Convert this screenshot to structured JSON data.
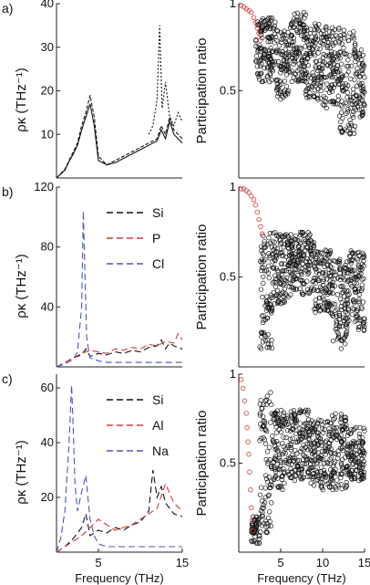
{
  "chart_data": [
    {
      "panel": "a)",
      "type": "line",
      "ylabel": "ρκ (THz⁻¹)",
      "ylim": [
        0,
        40
      ],
      "yticks": [
        "40",
        "30",
        "20",
        "10"
      ],
      "ytick_values": [
        40,
        30,
        20,
        10
      ],
      "xlim": [
        0,
        15
      ],
      "legend": null,
      "series": [
        {
          "color": "#111111",
          "dash": "4 2",
          "x": [
            0,
            1,
            1.5,
            2,
            2.5,
            3,
            3.5,
            4,
            4.5,
            5,
            6,
            7,
            8,
            9,
            10,
            11,
            12,
            12.5,
            13,
            13.5,
            14,
            15
          ],
          "y": [
            0,
            2,
            4,
            6,
            8,
            12,
            15,
            19,
            14,
            5,
            3,
            4,
            5,
            6,
            7,
            8,
            9,
            12,
            10,
            14,
            11,
            9
          ]
        },
        {
          "color": "#111111",
          "dash": "none",
          "x": [
            0,
            1,
            1.5,
            2,
            2.5,
            3,
            3.5,
            4,
            4.5,
            5,
            6,
            7,
            8,
            9,
            10,
            11,
            12,
            12.5,
            13,
            13.5,
            14,
            15
          ],
          "y": [
            0,
            1.8,
            3.8,
            5.5,
            7.5,
            11,
            14,
            17,
            12,
            4,
            3,
            3.5,
            4.5,
            5.5,
            6.5,
            7.5,
            8.5,
            11,
            9,
            13,
            10,
            8
          ]
        },
        {
          "color": "#111111",
          "dash": "2 2",
          "x": [
            11,
            11.5,
            12,
            12.3,
            12.6,
            13,
            13.5,
            14,
            14.5,
            15
          ],
          "y": [
            10,
            12,
            18,
            35,
            16,
            22,
            14,
            12,
            15,
            13
          ]
        }
      ]
    },
    {
      "panel": "b)",
      "type": "line",
      "ylabel": "ρκ (THz⁻¹)",
      "ylim": [
        0,
        120
      ],
      "yticks": [
        "120",
        "80",
        "40"
      ],
      "ytick_values": [
        120,
        80,
        40
      ],
      "xlim": [
        0,
        15
      ],
      "legend": "top-right",
      "series": [
        {
          "name": "Si",
          "color": "#111111",
          "dash": "7 4",
          "x": [
            0,
            1,
            2,
            3,
            3.5,
            4,
            5,
            6,
            7,
            8,
            9,
            10,
            11,
            12,
            12.5,
            13,
            13.5,
            14,
            15
          ],
          "y": [
            0,
            3,
            6,
            8,
            12,
            7,
            9,
            8,
            10,
            9,
            11,
            10,
            13,
            14,
            18,
            12,
            16,
            14,
            12
          ]
        },
        {
          "name": "P",
          "color": "#d23b3b",
          "dash": "7 4",
          "x": [
            0,
            1,
            2,
            3,
            4,
            5,
            6,
            7,
            8,
            9,
            10,
            11,
            12,
            13,
            14,
            14.5,
            15
          ],
          "y": [
            0,
            3,
            6,
            9,
            11,
            10,
            9,
            12,
            11,
            13,
            12,
            15,
            14,
            17,
            16,
            22,
            18
          ]
        },
        {
          "name": "Cl",
          "color": "#4a55c4",
          "dash": "7 4",
          "x": [
            0,
            1,
            2,
            2.5,
            3,
            3.2,
            3.4,
            3.6,
            3.8,
            4,
            5,
            6,
            8,
            10,
            12,
            14,
            15
          ],
          "y": [
            0,
            2,
            5,
            10,
            40,
            104,
            60,
            20,
            12,
            6,
            4,
            3,
            3,
            3,
            3,
            3,
            3
          ]
        }
      ]
    },
    {
      "panel": "c)",
      "type": "line",
      "ylabel": "ρκ (THz⁻¹)",
      "ylim": [
        0,
        65
      ],
      "yticks": [
        "60",
        "40",
        "20"
      ],
      "ytick_values": [
        60,
        40,
        20
      ],
      "xlim": [
        0,
        15
      ],
      "xticks": [
        "5",
        "15"
      ],
      "xtick_values": [
        5,
        15
      ],
      "xlabel": "Frequency (THz)",
      "legend": "top-right",
      "series": [
        {
          "name": "Si",
          "color": "#111111",
          "dash": "7 4",
          "x": [
            0,
            1,
            2,
            3,
            3.5,
            4,
            5,
            6,
            7,
            8,
            9,
            10,
            11,
            11.5,
            12,
            12.5,
            13,
            14,
            15
          ],
          "y": [
            0,
            2,
            5,
            9,
            14,
            6,
            8,
            7,
            9,
            8,
            10,
            11,
            15,
            30,
            20,
            24,
            18,
            14,
            13
          ]
        },
        {
          "name": "Al",
          "color": "#d23b3b",
          "dash": "7 4",
          "x": [
            0,
            1,
            2,
            3,
            4,
            5,
            6,
            7,
            8,
            9,
            10,
            11,
            12,
            13,
            14,
            15
          ],
          "y": [
            0,
            2,
            4,
            6,
            9,
            12,
            10,
            8,
            9,
            10,
            12,
            14,
            16,
            25,
            18,
            15
          ]
        },
        {
          "name": "Na",
          "color": "#4a55c4",
          "dash": "7 4",
          "x": [
            0,
            0.5,
            1,
            1.5,
            1.8,
            2,
            2.2,
            2.5,
            3,
            3.5,
            4,
            4.5,
            5,
            6,
            8,
            10,
            12,
            15
          ],
          "y": [
            0,
            5,
            15,
            40,
            61,
            45,
            25,
            15,
            22,
            28,
            12,
            6,
            3,
            2,
            2,
            2,
            2,
            2
          ]
        }
      ]
    },
    {
      "panel": "a-right",
      "type": "scatter",
      "ylabel": "Participation ratio",
      "ylim": [
        0,
        1
      ],
      "yticks": [
        "1",
        "0.5"
      ],
      "ytick_values": [
        1,
        0.5
      ],
      "xlim": [
        0,
        15
      ],
      "points_red": [
        [
          0.3,
          0.99
        ],
        [
          0.6,
          0.98
        ],
        [
          0.9,
          0.97
        ],
        [
          1.2,
          0.96
        ],
        [
          1.5,
          0.95
        ],
        [
          1.8,
          0.92
        ],
        [
          2.0,
          0.89
        ],
        [
          2.2,
          0.86
        ],
        [
          2.4,
          0.83
        ],
        [
          2.6,
          0.79
        ]
      ],
      "clusters": [
        {
          "x0": 2,
          "x1": 4.5,
          "ylo": 0.55,
          "yhi": 0.92
        },
        {
          "x0": 4.5,
          "x1": 6,
          "ylo": 0.45,
          "yhi": 0.85
        },
        {
          "x0": 6,
          "x1": 8,
          "ylo": 0.55,
          "yhi": 0.95
        },
        {
          "x0": 8,
          "x1": 10,
          "ylo": 0.45,
          "yhi": 0.9
        },
        {
          "x0": 10,
          "x1": 12,
          "ylo": 0.4,
          "yhi": 0.88
        },
        {
          "x0": 12,
          "x1": 14,
          "ylo": 0.25,
          "yhi": 0.85
        },
        {
          "x0": 14,
          "x1": 15,
          "ylo": 0.35,
          "yhi": 0.75
        }
      ]
    },
    {
      "panel": "b-right",
      "type": "scatter",
      "ylabel": "Participation ratio",
      "ylim": [
        0,
        1
      ],
      "yticks": [
        "1",
        "0.5"
      ],
      "ytick_values": [
        1,
        0.5
      ],
      "xlim": [
        0,
        15
      ],
      "points_red": [
        [
          0.3,
          0.99
        ],
        [
          0.6,
          0.99
        ],
        [
          0.9,
          0.98
        ],
        [
          1.2,
          0.97
        ],
        [
          1.5,
          0.95
        ],
        [
          1.8,
          0.93
        ],
        [
          2.0,
          0.9
        ],
        [
          2.2,
          0.86
        ],
        [
          2.4,
          0.82
        ],
        [
          2.6,
          0.78
        ],
        [
          2.8,
          0.74
        ]
      ],
      "clusters": [
        {
          "x0": 2.5,
          "x1": 4,
          "ylo": 0.1,
          "yhi": 0.75
        },
        {
          "x0": 4,
          "x1": 6,
          "ylo": 0.35,
          "yhi": 0.75
        },
        {
          "x0": 6,
          "x1": 9,
          "ylo": 0.4,
          "yhi": 0.75
        },
        {
          "x0": 9,
          "x1": 11,
          "ylo": 0.3,
          "yhi": 0.65
        },
        {
          "x0": 11,
          "x1": 13,
          "ylo": 0.1,
          "yhi": 0.6
        },
        {
          "x0": 13,
          "x1": 15,
          "ylo": 0.2,
          "yhi": 0.65
        }
      ]
    },
    {
      "panel": "c-right",
      "type": "scatter",
      "ylabel": "Participation ratio",
      "ylim": [
        0,
        1
      ],
      "yticks": [
        "1",
        "0.5"
      ],
      "ytick_values": [
        1,
        0.5
      ],
      "xlim": [
        0,
        15
      ],
      "xticks": [
        "5",
        "10",
        "15"
      ],
      "xtick_values": [
        5,
        10,
        15
      ],
      "xlabel": "Frequency (THz)",
      "points_red": [
        [
          0.3,
          0.97
        ],
        [
          0.5,
          0.92
        ],
        [
          0.7,
          0.85
        ],
        [
          0.9,
          0.78
        ],
        [
          1.0,
          0.7
        ],
        [
          1.1,
          0.62
        ],
        [
          1.2,
          0.55
        ],
        [
          1.3,
          0.45
        ],
        [
          1.4,
          0.35
        ],
        [
          1.5,
          0.25
        ],
        [
          1.6,
          0.18
        ],
        [
          1.7,
          0.12
        ]
      ],
      "clusters": [
        {
          "x0": 1.5,
          "x1": 2.5,
          "ylo": 0.05,
          "yhi": 0.2
        },
        {
          "x0": 2.5,
          "x1": 4,
          "ylo": 0.1,
          "yhi": 0.9
        },
        {
          "x0": 4,
          "x1": 6,
          "ylo": 0.35,
          "yhi": 0.8
        },
        {
          "x0": 6,
          "x1": 8.5,
          "ylo": 0.4,
          "yhi": 0.8
        },
        {
          "x0": 8.5,
          "x1": 11,
          "ylo": 0.35,
          "yhi": 0.75
        },
        {
          "x0": 11,
          "x1": 13,
          "ylo": 0.35,
          "yhi": 0.78
        },
        {
          "x0": 13,
          "x1": 15,
          "ylo": 0.4,
          "yhi": 0.7
        }
      ]
    }
  ]
}
